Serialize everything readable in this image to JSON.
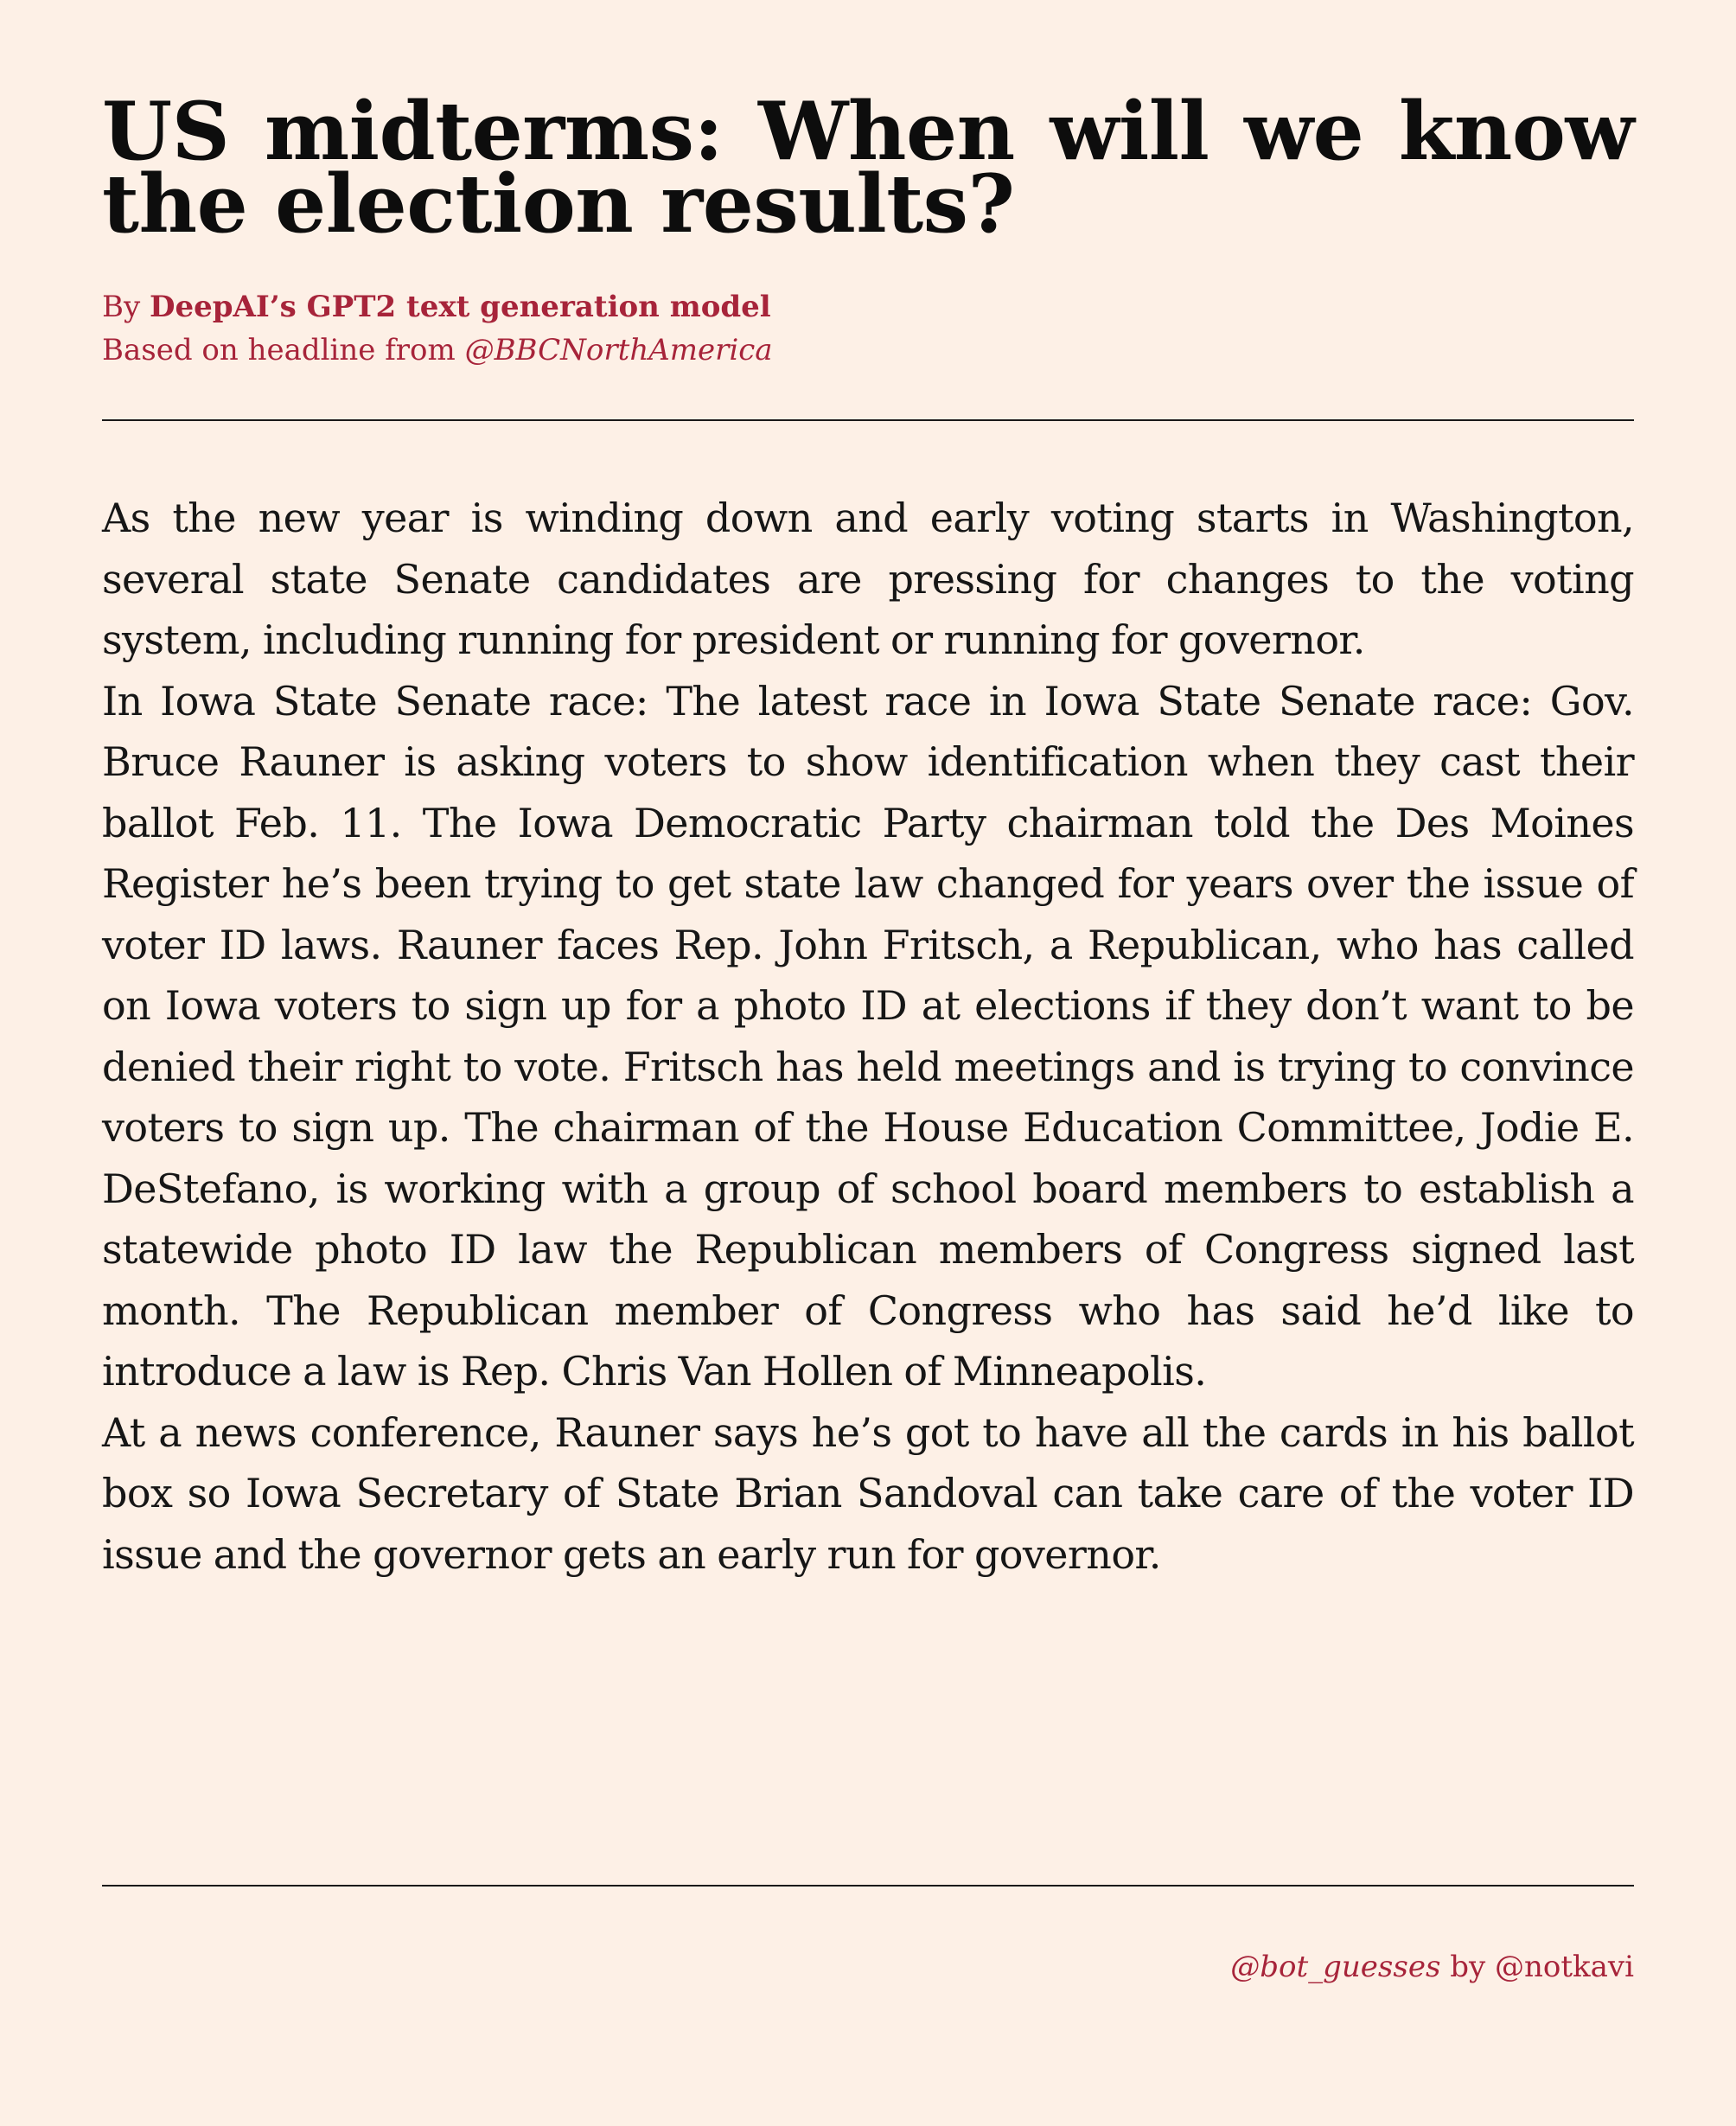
{
  "article": {
    "headline": "US midterms: When will we know the election results?",
    "byline": {
      "prefix": "By ",
      "author": "DeepAI’s GPT2 text generation model",
      "source_prefix": "Based on headline from ",
      "source_handle": "@BBCNorthAmerica"
    },
    "paragraphs": [
      "As the new year is winding down and early voting starts in Washington, several state Senate candidates are pressing for changes to the voting system, including running for president or running for governor.",
      "In Iowa State Senate race: The latest race in Iowa State Senate race: Gov. Bruce Rauner is asking voters to show identification when they cast their ballot Feb. 11. The Iowa Democratic Party chairman told the Des Moines Register he’s been trying to get state law changed for years over the issue of voter ID laws. Rauner faces Rep. John Fritsch, a Republican, who has called on Iowa voters to sign up for a photo ID at elections if they don’t want to be denied their right to vote. Fritsch has held meetings and is trying to convince voters to sign up. The chairman of the House Education Committee, Jodie E. DeStefano, is working with a group of school board members to establish a statewide photo ID law the Republican members of Congress signed last month. The Republican member of Congress who has said he’d like to introduce a law is Rep. Chris Van Hollen of Minneapolis.",
      "At a news conference, Rauner says he’s got to have all the cards in his ballot box so Iowa Secretary of State Brian Sandoval can take care of the voter ID issue and the governor gets an early run for governor."
    ]
  },
  "footer": {
    "bot_handle": "@bot_guesses",
    "joiner": " by ",
    "creator_handle": "@notkavi"
  },
  "colors": {
    "background": "#fdf0e6",
    "accent": "#a7243a",
    "text": "#111111"
  }
}
